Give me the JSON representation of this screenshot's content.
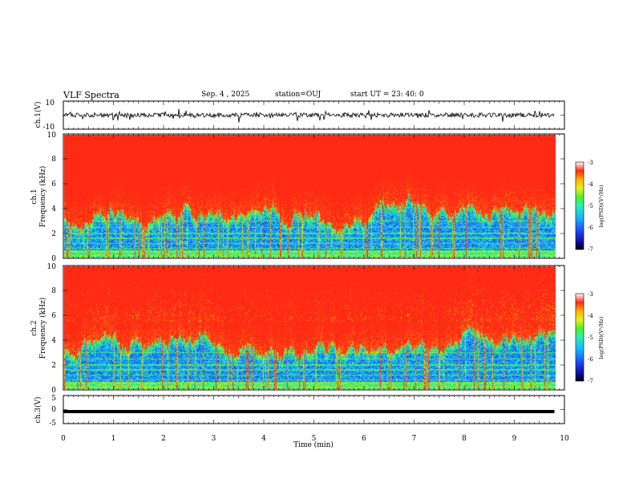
{
  "header": {
    "title": "VLF Spectra",
    "date": "Sep. 4 , 2025",
    "station": "station=OUJ",
    "start_ut": "start UT =  23: 40: 0"
  },
  "colors": {
    "spectrogram_scale": [
      "#0a0a7a",
      "#1e3cff",
      "#14a0ff",
      "#28e6c8",
      "#3cf03c",
      "#d2f01e",
      "#ffd200",
      "#ff7814",
      "#ff2a14",
      "#ff2a14"
    ]
  },
  "chart_data": [
    {
      "type": "line",
      "id": "ch1",
      "ylabel": "ch.1(V)",
      "ylim": [
        -10,
        10
      ],
      "ytick_labels": [
        "10",
        "-10"
      ],
      "trace_color": "#000000"
    },
    {
      "type": "heatmap",
      "id": "ch1-spectrogram",
      "ylabel_line1": "ch.1",
      "ylabel_line2": "Frequency (kHz)",
      "ylim": [
        0,
        10
      ],
      "ytick_labels": [
        "0",
        "2",
        "4",
        "6",
        "8",
        "10"
      ],
      "colorbar": {
        "label": "log(PSD)(V²/Hz)",
        "range": [
          -7,
          -3
        ],
        "tick_labels": [
          "-3",
          "-4",
          "-5",
          "-6",
          "-7"
        ]
      }
    },
    {
      "type": "heatmap",
      "id": "ch2-spectrogram",
      "ylabel_line1": "ch.2",
      "ylabel_line2": "Frequency (kHz)",
      "ylim": [
        0,
        10
      ],
      "ytick_labels": [
        "0",
        "2",
        "4",
        "6",
        "8",
        "10"
      ],
      "colorbar": {
        "label": "log(PSD)(V²/Hz)",
        "range": [
          -7,
          -3
        ],
        "tick_labels": [
          "-3",
          "-4",
          "-5",
          "-6",
          "-7"
        ]
      }
    },
    {
      "type": "line",
      "id": "ch3",
      "ylabel": "ch.3(V)",
      "ylim": [
        -5,
        5
      ],
      "ytick_labels": [
        "5",
        "0",
        "-5"
      ],
      "value": -0.7,
      "trace_color": "#000000"
    }
  ],
  "xaxis": {
    "label": "Time (min)",
    "xlim": [
      0,
      10
    ],
    "tick_labels": [
      "0",
      "1",
      "2",
      "3",
      "4",
      "5",
      "6",
      "7",
      "8",
      "9",
      "10"
    ],
    "data_end_min": 9.8
  }
}
